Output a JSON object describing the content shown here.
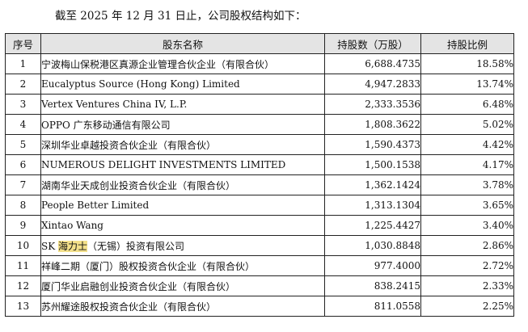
{
  "intro_text": "截至 2025 年 12 月 31 日止，公司股权结构如下：",
  "table": {
    "headers": {
      "index": "序号",
      "name": "股东名称",
      "shares": "持股数（万股）",
      "ratio": "持股比例"
    },
    "rows": [
      {
        "index": "1",
        "name": "宁波梅山保税港区真源企业管理合伙企业（有限合伙）",
        "shares": "6,688.4735",
        "ratio": "18.58%"
      },
      {
        "index": "2",
        "name": "Eucalyptus Source (Hong Kong) Limited",
        "shares": "4,947.2833",
        "ratio": "13.74%"
      },
      {
        "index": "3",
        "name": "Vertex Ventures China IV, L.P.",
        "shares": "2,333.3536",
        "ratio": "6.48%"
      },
      {
        "index": "4",
        "name": "OPPO 广东移动通信有限公司",
        "shares": "1,808.3622",
        "ratio": "5.02%"
      },
      {
        "index": "5",
        "name": "深圳华业卓越投资合伙企业（有限合伙）",
        "shares": "1,590.4373",
        "ratio": "4.42%"
      },
      {
        "index": "6",
        "name": "NUMEROUS DELIGHT INVESTMENTS LIMITED",
        "shares": "1,500.1538",
        "ratio": "4.17%"
      },
      {
        "index": "7",
        "name": "湖南华业天成创业投资合伙企业（有限合伙）",
        "shares": "1,362.1424",
        "ratio": "3.78%"
      },
      {
        "index": "8",
        "name": "People Better Limited",
        "shares": "1,313.1304",
        "ratio": "3.65%"
      },
      {
        "index": "9",
        "name": "Xintao Wang",
        "shares": "1,225.4427",
        "ratio": "3.40%"
      },
      {
        "index": "10",
        "name_prefix": "SK ",
        "name_highlight": "海力士",
        "name_suffix": "（无锡）投资有限公司",
        "shares": "1,030.8848",
        "ratio": "2.86%"
      },
      {
        "index": "11",
        "name": "祥峰二期（厦门）股权投资合伙企业（有限合伙）",
        "shares": "977.4000",
        "ratio": "2.72%"
      },
      {
        "index": "12",
        "name": "厦门华业启融创业投资合伙企业（有限合伙）",
        "shares": "838.2415",
        "ratio": "2.33%"
      },
      {
        "index": "13",
        "name": "苏州耀途股权投资合伙企业（有限合伙）",
        "shares": "811.0558",
        "ratio": "2.25%"
      }
    ]
  },
  "colors": {
    "header_bg": "#e4e4e4",
    "highlight": "#f3e08a"
  }
}
